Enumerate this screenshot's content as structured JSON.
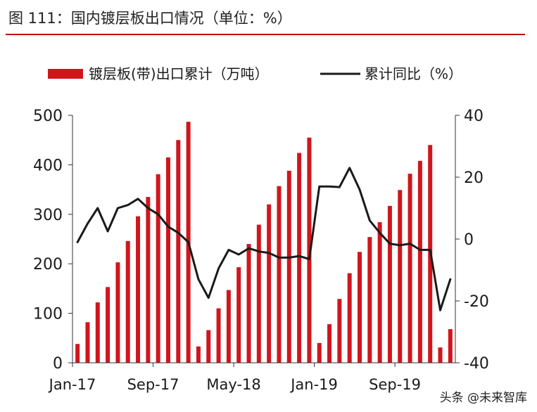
{
  "title": "图 111：国内镀层板出口情况（单位：%）",
  "watermark": "头条 @未来智库",
  "colors": {
    "bar": "#d0161d",
    "line": "#1a1a1a",
    "title_rule": "#c00000",
    "axis": "#333333"
  },
  "chart_data": {
    "type": "bar+line",
    "legend_position": "top",
    "grid": false,
    "series": [
      {
        "name": "镀层板(带)出口累计（万吨）",
        "type": "bar",
        "axis": "left",
        "values": [
          38,
          82,
          122,
          153,
          203,
          246,
          296,
          335,
          381,
          415,
          450,
          487,
          33,
          66,
          110,
          147,
          193,
          240,
          279,
          320,
          357,
          388,
          424,
          455,
          40,
          78,
          129,
          181,
          224,
          254,
          284,
          317,
          349,
          382,
          408,
          440,
          31,
          68
        ]
      },
      {
        "name": "累计同比（%）",
        "type": "line",
        "axis": "right",
        "values": [
          -1,
          5,
          10,
          2.5,
          10,
          11,
          13,
          10,
          8,
          4,
          2,
          -1,
          -13,
          -19,
          -9.5,
          -3.5,
          -5,
          -3,
          -4,
          -4.5,
          -6,
          -6,
          -5.5,
          -6.5,
          17,
          17,
          16.8,
          23,
          16,
          6,
          2,
          -1.5,
          -2,
          -1.5,
          -3.5,
          -3.5,
          -23,
          -13
        ]
      }
    ],
    "x_tick_labels": [
      "Jan-17",
      "Sep-17",
      "May-18",
      "Jan-19",
      "Sep-19"
    ],
    "x_tick_indices": [
      0,
      8,
      16,
      24,
      32
    ],
    "y_left": {
      "min": 0,
      "max": 500,
      "ticks": [
        0,
        100,
        200,
        300,
        400,
        500
      ]
    },
    "y_right": {
      "min": -40,
      "max": 40,
      "ticks": [
        -40,
        -20,
        0,
        20,
        40
      ]
    }
  }
}
